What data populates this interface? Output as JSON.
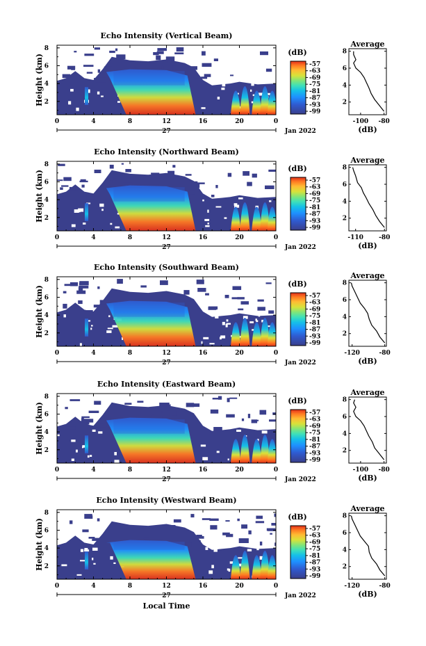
{
  "chart_data": [
    {
      "type": "heatmap",
      "title": "Echo Intensity (Vertical Beam)",
      "ylabel": "Height (km)",
      "x_ticks": [
        "0",
        "4",
        "8",
        "12",
        "16",
        "20",
        "0"
      ],
      "y_ticks": [
        "2",
        "4",
        "6",
        "8"
      ],
      "date_label": "27",
      "month_label": "Jan 2022",
      "cbar_unit": "(dB)",
      "cbar_ticks": [
        "-57",
        "-63",
        "-69",
        "-75",
        "-81",
        "-87",
        "-93",
        "-99"
      ],
      "avg": {
        "title": "Average",
        "xlabel": "(dB)",
        "x_ticks": [
          "-100",
          "-80"
        ],
        "xlim": [
          -110,
          -78
        ],
        "y_ticks": [
          "2",
          "4",
          "6",
          "8"
        ],
        "profile": [
          [
            -80,
            0.9
          ],
          [
            -84,
            1.6
          ],
          [
            -88,
            2.3
          ],
          [
            -91,
            3.0
          ],
          [
            -93,
            3.7
          ],
          [
            -95,
            4.3
          ],
          [
            -97,
            4.9
          ],
          [
            -100,
            5.5
          ],
          [
            -104,
            6.0
          ],
          [
            -106,
            6.6
          ],
          [
            -104,
            7.0
          ],
          [
            -106,
            7.6
          ],
          [
            -106,
            8.0
          ]
        ]
      }
    },
    {
      "type": "heatmap",
      "title": "Echo Intensity (Northward Beam)",
      "ylabel": "Height (km)",
      "x_ticks": [
        "0",
        "4",
        "8",
        "12",
        "16",
        "20",
        "0"
      ],
      "y_ticks": [
        "2",
        "4",
        "6",
        "8"
      ],
      "date_label": "27",
      "month_label": "Jan 2022",
      "cbar_unit": "(dB)",
      "cbar_ticks": [
        "-57",
        "-63",
        "-69",
        "-75",
        "-81",
        "-87",
        "-93",
        "-99"
      ],
      "avg": {
        "title": "Average",
        "xlabel": "(dB)",
        "x_ticks": [
          "-110",
          "-80"
        ],
        "xlim": [
          -117,
          -78
        ],
        "y_ticks": [
          "2",
          "4",
          "6",
          "8"
        ],
        "profile": [
          [
            -80,
            0.9
          ],
          [
            -85,
            1.6
          ],
          [
            -89,
            2.3
          ],
          [
            -92,
            3.0
          ],
          [
            -96,
            3.7
          ],
          [
            -99,
            4.4
          ],
          [
            -102,
            5.0
          ],
          [
            -104,
            5.6
          ],
          [
            -108,
            6.2
          ],
          [
            -110,
            7.0
          ],
          [
            -112,
            7.6
          ],
          [
            -113,
            8.0
          ]
        ]
      }
    },
    {
      "type": "heatmap",
      "title": "Echo Intensity (Southward Beam)",
      "ylabel": "Height (km)",
      "x_ticks": [
        "0",
        "4",
        "8",
        "12",
        "16",
        "20",
        "0"
      ],
      "y_ticks": [
        "2",
        "4",
        "6",
        "8"
      ],
      "date_label": "27",
      "month_label": "Jan 2022",
      "cbar_unit": "(dB)",
      "cbar_ticks": [
        "-57",
        "-63",
        "-69",
        "-75",
        "-81",
        "-87",
        "-93",
        "-99"
      ],
      "avg": {
        "title": "Average",
        "xlabel": "(dB)",
        "x_ticks": [
          "-120",
          "-80"
        ],
        "xlim": [
          -124,
          -78
        ],
        "y_ticks": [
          "2",
          "4",
          "6",
          "8"
        ],
        "profile": [
          [
            -80,
            0.9
          ],
          [
            -86,
            1.6
          ],
          [
            -90,
            2.3
          ],
          [
            -96,
            3.0
          ],
          [
            -99,
            3.7
          ],
          [
            -101,
            4.4
          ],
          [
            -105,
            5.0
          ],
          [
            -110,
            5.6
          ],
          [
            -113,
            6.2
          ],
          [
            -117,
            7.0
          ],
          [
            -120,
            7.6
          ],
          [
            -121,
            8.0
          ]
        ]
      }
    },
    {
      "type": "heatmap",
      "title": "Echo Intensity (Eastward Beam)",
      "ylabel": "Height (km)",
      "x_ticks": [
        "0",
        "4",
        "8",
        "12",
        "16",
        "20",
        "0"
      ],
      "y_ticks": [
        "2",
        "4",
        "6",
        "8"
      ],
      "date_label": "27",
      "month_label": "Jan 2022",
      "cbar_unit": "(dB)",
      "cbar_ticks": [
        "-57",
        "-63",
        "-69",
        "-75",
        "-81",
        "-87",
        "-93",
        "-99"
      ],
      "avg": {
        "title": "Average",
        "xlabel": "(dB)",
        "x_ticks": [
          "-100",
          "-80"
        ],
        "xlim": [
          -110,
          -78
        ],
        "y_ticks": [
          "2",
          "4",
          "6",
          "8"
        ],
        "profile": [
          [
            -80,
            0.9
          ],
          [
            -84,
            1.6
          ],
          [
            -88,
            2.3
          ],
          [
            -90,
            3.0
          ],
          [
            -93,
            3.7
          ],
          [
            -95,
            4.3
          ],
          [
            -97,
            4.9
          ],
          [
            -100,
            5.5
          ],
          [
            -104,
            6.0
          ],
          [
            -106,
            6.6
          ],
          [
            -104,
            7.1
          ],
          [
            -106,
            7.6
          ],
          [
            -105,
            8.0
          ]
        ]
      }
    },
    {
      "type": "heatmap",
      "title": "Echo Intensity (Westward Beam)",
      "ylabel": "Height (km)",
      "x_ticks": [
        "0",
        "4",
        "8",
        "12",
        "16",
        "20",
        "0"
      ],
      "y_ticks": [
        "2",
        "4",
        "6",
        "8"
      ],
      "date_label": "27",
      "month_label": "Jan 2022",
      "xlabel": "Local Time",
      "cbar_unit": "(dB)",
      "cbar_ticks": [
        "-57",
        "-63",
        "-69",
        "-75",
        "-81",
        "-87",
        "-93",
        "-99"
      ],
      "avg": {
        "title": "Average",
        "xlabel": "(dB)",
        "x_ticks": [
          "-120",
          "-80"
        ],
        "xlim": [
          -124,
          -78
        ],
        "y_ticks": [
          "2",
          "4",
          "6",
          "8"
        ],
        "profile": [
          [
            -80,
            0.9
          ],
          [
            -86,
            1.6
          ],
          [
            -90,
            2.3
          ],
          [
            -96,
            3.0
          ],
          [
            -99,
            3.7
          ],
          [
            -100,
            4.4
          ],
          [
            -105,
            5.0
          ],
          [
            -110,
            5.6
          ],
          [
            -113,
            6.2
          ],
          [
            -117,
            7.0
          ],
          [
            -120,
            7.6
          ],
          [
            -121,
            8.0
          ]
        ]
      }
    }
  ],
  "colors": {
    "colormap": [
      "#3a3f8c",
      "#2f5bd0",
      "#1e90ff",
      "#15c0e8",
      "#3fe0b8",
      "#7fe57a",
      "#d8e23a",
      "#ffbb33",
      "#ff7a22",
      "#e0301a"
    ],
    "no_data": "#ffffff",
    "axis": "#000000"
  }
}
